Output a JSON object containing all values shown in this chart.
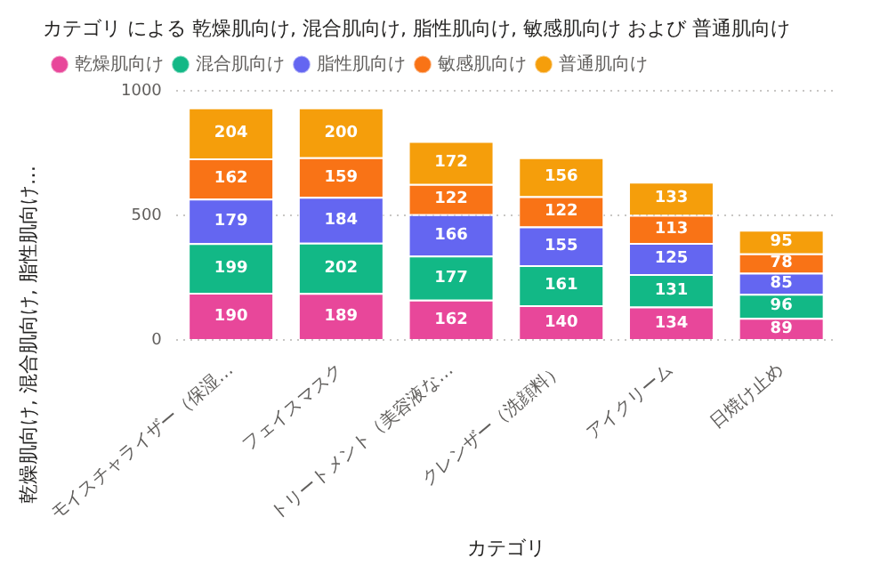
{
  "chart_data": {
    "type": "bar",
    "stacked": true,
    "title": "カテゴリ による 乾燥肌向け, 混合肌向け, 脂性肌向け, 敏感肌向け および 普通肌向け",
    "xlabel": "カテゴリ",
    "ylabel": "乾燥肌向け, 混合肌向け, 脂性肌向け…",
    "categories": [
      "モイスチャライザー（保湿…",
      "フェイスマスク",
      "トリートメント（美容液な…",
      "クレンザー（洗顔料）",
      "アイクリーム",
      "日焼け止め"
    ],
    "series": [
      {
        "name": "乾燥肌向け",
        "color": "#e8479a",
        "values": [
          190,
          189,
          162,
          140,
          134,
          89
        ]
      },
      {
        "name": "混合肌向け",
        "color": "#12b886",
        "values": [
          199,
          202,
          177,
          161,
          131,
          96
        ]
      },
      {
        "name": "脂性肌向け",
        "color": "#6466f1",
        "values": [
          179,
          184,
          166,
          155,
          125,
          85
        ]
      },
      {
        "name": "敏感肌向け",
        "color": "#f97316",
        "values": [
          162,
          159,
          122,
          122,
          113,
          78
        ]
      },
      {
        "name": "普通肌向け",
        "color": "#f59e0b",
        "values": [
          204,
          200,
          172,
          156,
          133,
          95
        ]
      }
    ],
    "ylim": [
      0,
      1000
    ],
    "yticks": [
      0,
      500,
      1000
    ],
    "grid": "y",
    "legend": "top left",
    "data_labels": true
  }
}
